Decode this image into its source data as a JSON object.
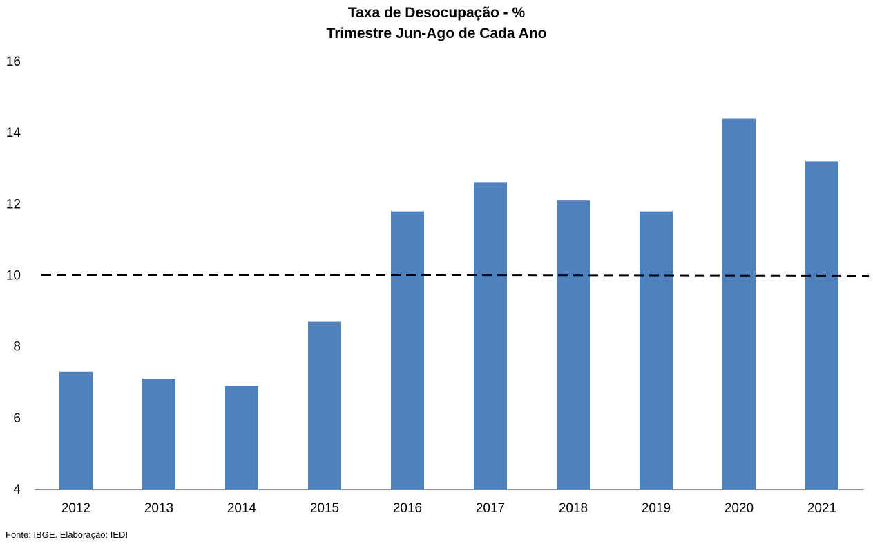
{
  "chart_data": {
    "type": "bar",
    "title": "Taxa de Desocupação - %",
    "subtitle": "Trimestre Jun-Ago de Cada Ano",
    "xlabel": "",
    "ylabel": "",
    "categories": [
      "2012",
      "2013",
      "2014",
      "2015",
      "2016",
      "2017",
      "2018",
      "2019",
      "2020",
      "2021"
    ],
    "series": [
      {
        "values": [
          7.3,
          7.1,
          6.9,
          8.7,
          11.8,
          12.6,
          12.1,
          11.8,
          14.4,
          13.2
        ],
        "color": "#4F81BD"
      }
    ],
    "ylim": [
      4,
      16
    ],
    "yticks": [
      4,
      6,
      8,
      10,
      12,
      14,
      16
    ],
    "reference_line": {
      "y": 10,
      "style": "dashed",
      "color": "#000000"
    },
    "grid": false,
    "legend": "none"
  },
  "source_note": "Fonte: IBGE. Elaboração: IEDI"
}
